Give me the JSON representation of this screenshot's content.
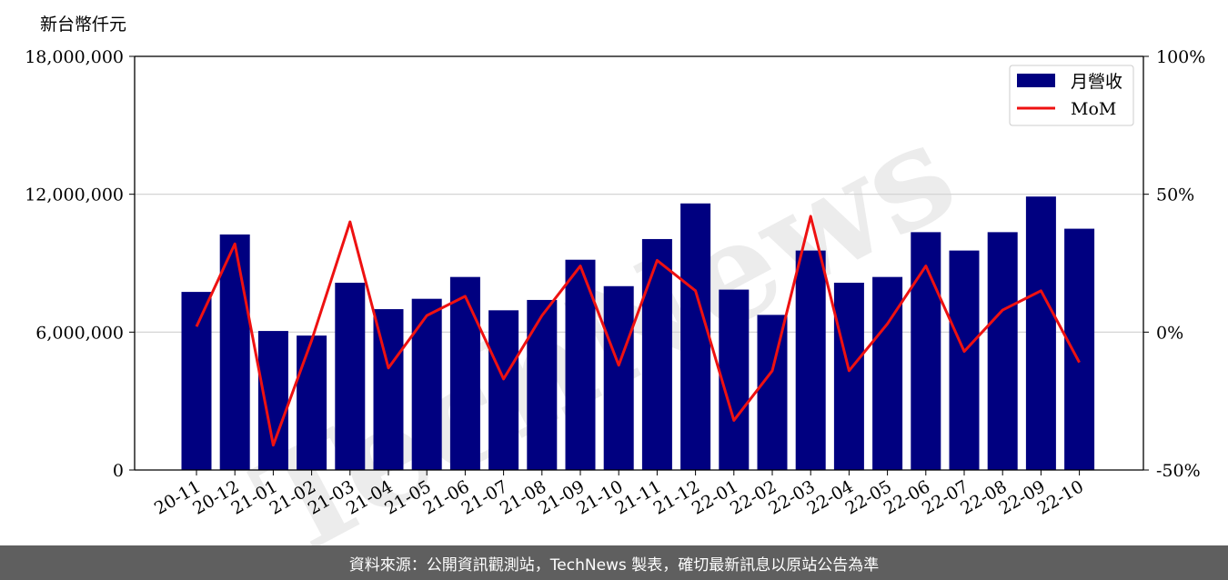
{
  "chart_data": {
    "type": "bar",
    "ylabel": "新台幣仟元",
    "categories": [
      "20-11",
      "20-12",
      "21-01",
      "21-02",
      "21-03",
      "21-04",
      "21-05",
      "21-06",
      "21-07",
      "21-08",
      "21-09",
      "21-10",
      "21-11",
      "21-12",
      "22-01",
      "22-02",
      "22-03",
      "22-04",
      "22-05",
      "22-06",
      "22-07",
      "22-08",
      "22-09",
      "22-10"
    ],
    "series": [
      {
        "name": "月營收",
        "kind": "bar",
        "axis": "left",
        "color": "#000080",
        "values": [
          7750000,
          10250000,
          6050000,
          5850000,
          8150000,
          7000000,
          7450000,
          8400000,
          6950000,
          7400000,
          9150000,
          8000000,
          10050000,
          11600000,
          7850000,
          6750000,
          9550000,
          8150000,
          8400000,
          10350000,
          9550000,
          10350000,
          11900000,
          10500000
        ]
      },
      {
        "name": "MoM",
        "kind": "line",
        "axis": "right",
        "color": "#ee1111",
        "values": [
          2,
          32,
          -41,
          -3,
          40,
          -13,
          6,
          13,
          -17,
          6,
          24,
          -12,
          26,
          15,
          -32,
          -14,
          42,
          -14,
          3,
          24,
          -7,
          8,
          15,
          -11
        ]
      }
    ],
    "y_left": {
      "range": [
        0,
        18000000
      ],
      "ticks": [
        0,
        6000000,
        12000000,
        18000000
      ],
      "tick_labels": [
        "0",
        "6,000,000",
        "12,000,000",
        "18,000,000"
      ]
    },
    "y_right": {
      "range": [
        -50,
        100
      ],
      "ticks": [
        -50,
        0,
        50,
        100
      ],
      "tick_labels": [
        "-50%",
        "0%",
        "50%",
        "100%"
      ]
    },
    "grid": "horizontal",
    "legend": "top-right",
    "watermark": "TechNews"
  },
  "footer": {
    "text": "資料來源：公開資訊觀測站，TechNews 製表，確切最新訊息以原站公告為準"
  }
}
